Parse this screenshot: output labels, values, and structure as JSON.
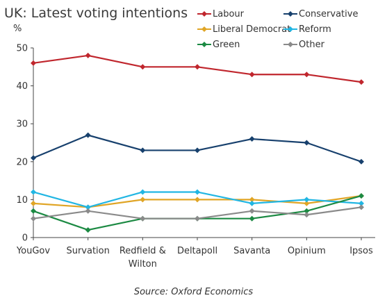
{
  "title": "UK: Latest voting intentions",
  "unit_label": "%",
  "source": "Source: Oxford Economics",
  "chart_data": {
    "type": "line",
    "title": "UK: Latest voting intentions",
    "ylabel": "%",
    "ylim": [
      0,
      50
    ],
    "yticks": [
      0,
      10,
      20,
      30,
      40,
      50
    ],
    "grid": false,
    "legend_position": "top-right",
    "categories": [
      "YouGov",
      "Survation",
      "Redfield & Wilton",
      "Deltapoll",
      "Savanta",
      "Opinium",
      "Ipsos"
    ],
    "series": [
      {
        "name": "Labour",
        "color": "#c0262d",
        "values": [
          46,
          48,
          45,
          45,
          43,
          43,
          41
        ]
      },
      {
        "name": "Conservative",
        "color": "#17406d",
        "values": [
          21,
          27,
          23,
          23,
          26,
          25,
          20
        ]
      },
      {
        "name": "Liberal Democrat",
        "color": "#e0a526",
        "values": [
          9,
          8,
          10,
          10,
          10,
          9,
          11
        ]
      },
      {
        "name": "Reform",
        "color": "#21b6e3",
        "values": [
          12,
          8,
          12,
          12,
          9,
          10,
          9
        ]
      },
      {
        "name": "Green",
        "color": "#1c8a43",
        "values": [
          7,
          2,
          5,
          5,
          5,
          7,
          11
        ]
      },
      {
        "name": "Other",
        "color": "#8a8a8a",
        "values": [
          5,
          7,
          5,
          5,
          7,
          6,
          8
        ]
      }
    ]
  }
}
